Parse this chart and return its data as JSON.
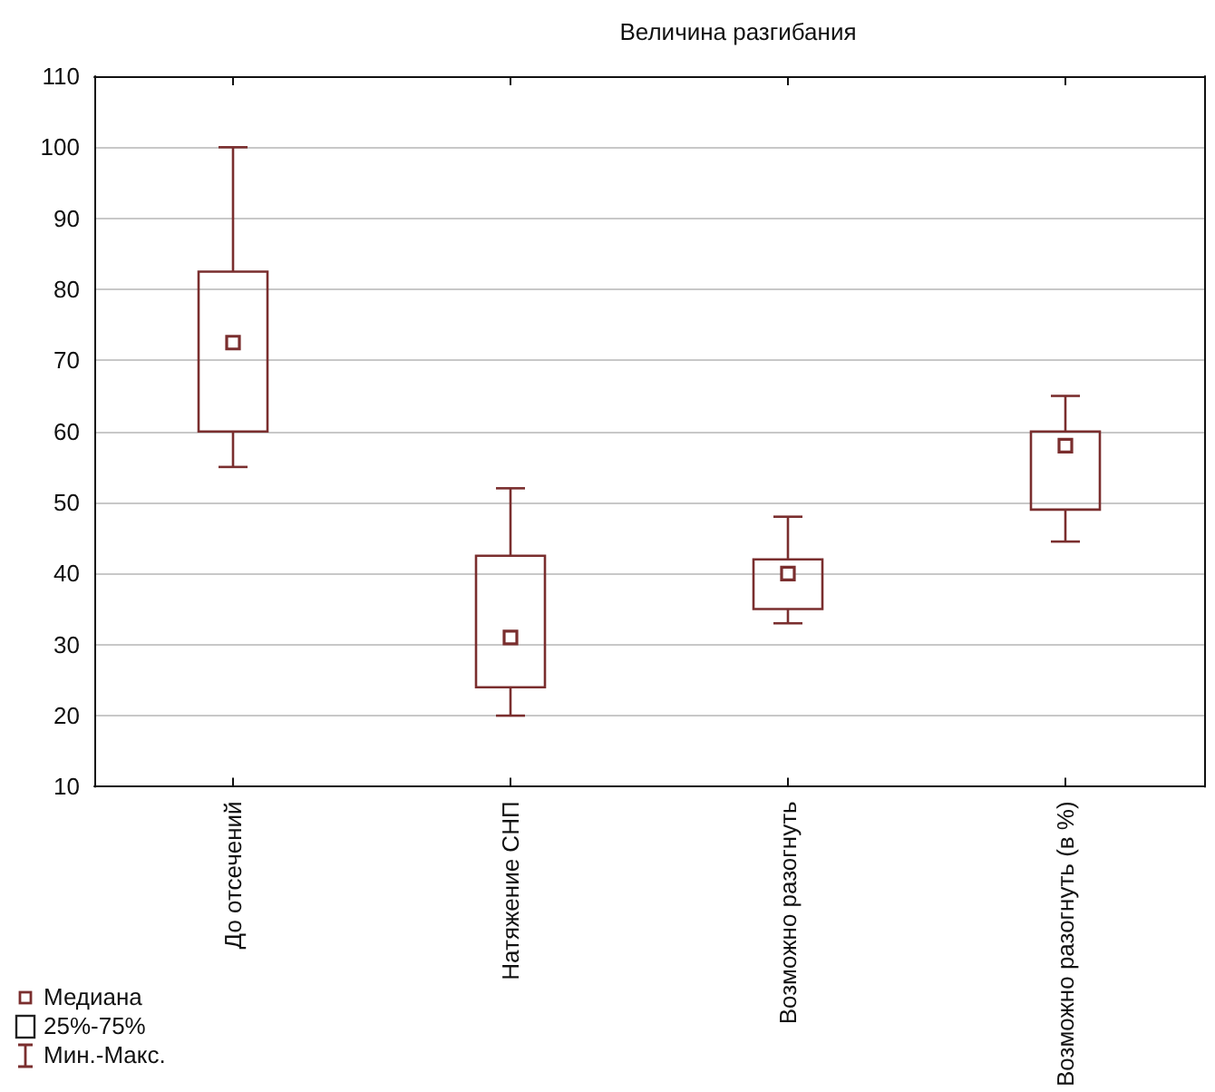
{
  "chart_data": {
    "type": "box",
    "title": "Величина разгибания",
    "categories": [
      "До отсечений",
      "Натяжение СНП",
      "Возможно разогнуть",
      "Возможно разогнуть (в %)"
    ],
    "boxes": [
      {
        "low": 55,
        "q1": 60,
        "median": 72.5,
        "q3": 82.5,
        "high": 100
      },
      {
        "low": 20,
        "q1": 24,
        "median": 31,
        "q3": 42.5,
        "high": 52
      },
      {
        "low": 33,
        "q1": 35,
        "median": 40,
        "q3": 42,
        "high": 48
      },
      {
        "low": 44.5,
        "q1": 49,
        "median": 58,
        "q3": 60,
        "high": 65
      }
    ],
    "color": "#7a2e2e",
    "ylim": [
      10,
      110
    ],
    "yticks": [
      10,
      20,
      30,
      40,
      50,
      60,
      70,
      80,
      90,
      100,
      110
    ],
    "grid": "y",
    "marker": "square",
    "annotations": [
      "Медиана",
      "25%-75%",
      "Мин.-Макс."
    ]
  }
}
